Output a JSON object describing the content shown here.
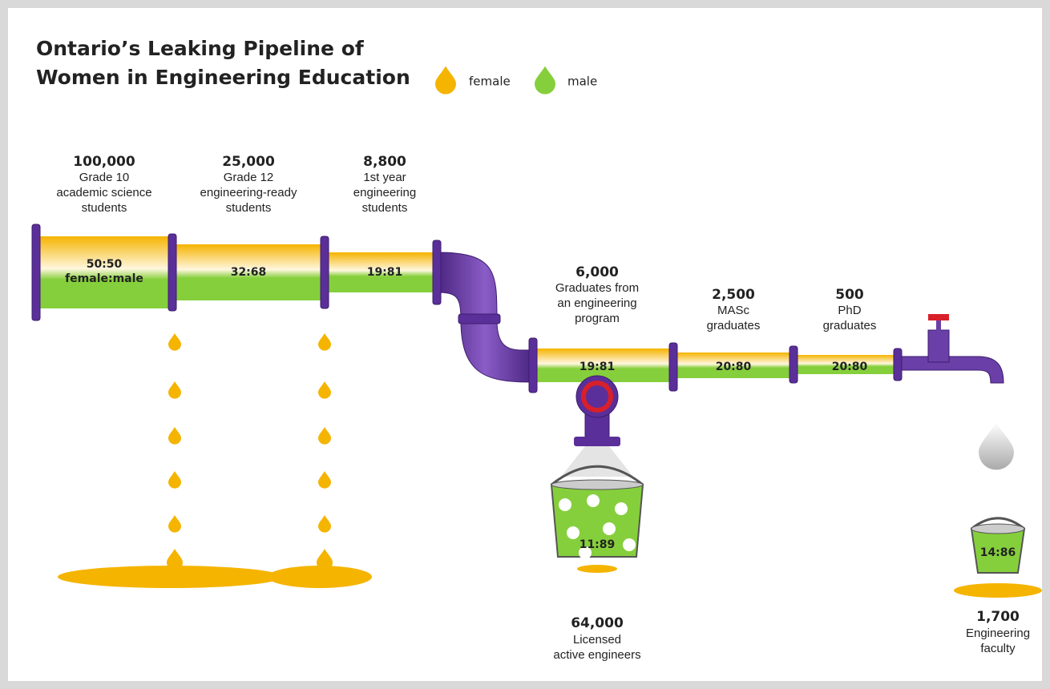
{
  "title": [
    "Ontario’s Leaking Pipeline of",
    "Women in Engineering Education"
  ],
  "legend": [
    {
      "label": "female",
      "color": "#f5b400"
    },
    {
      "label": "male",
      "color": "#86cf3c"
    }
  ],
  "stages": [
    {
      "count": "100,000",
      "label": [
        "Grade 10",
        "academic science",
        "students"
      ],
      "ratio": "50:50",
      "ratio_note": "female:male"
    },
    {
      "count": "25,000",
      "label": [
        "Grade 12",
        "engineering-ready",
        "students"
      ],
      "ratio": "32:68"
    },
    {
      "count": "8,800",
      "label": [
        "1st year",
        "engineering",
        "students"
      ],
      "ratio": "19:81"
    },
    {
      "count": "6,000",
      "label": [
        "Graduates from",
        "an engineering",
        "program"
      ],
      "ratio": "19:81"
    },
    {
      "count": "2,500",
      "label": [
        "MASc",
        "graduates"
      ],
      "ratio": "20:80"
    },
    {
      "count": "500",
      "label": [
        "PhD",
        "graduates"
      ],
      "ratio": "20:80"
    }
  ],
  "outcomes": [
    {
      "count": "64,000",
      "label": [
        "Licensed",
        "active engineers"
      ],
      "ratio": "11:89"
    },
    {
      "count": "1,700",
      "label": [
        "Engineering",
        "faculty"
      ],
      "ratio": "14:86"
    }
  ]
}
